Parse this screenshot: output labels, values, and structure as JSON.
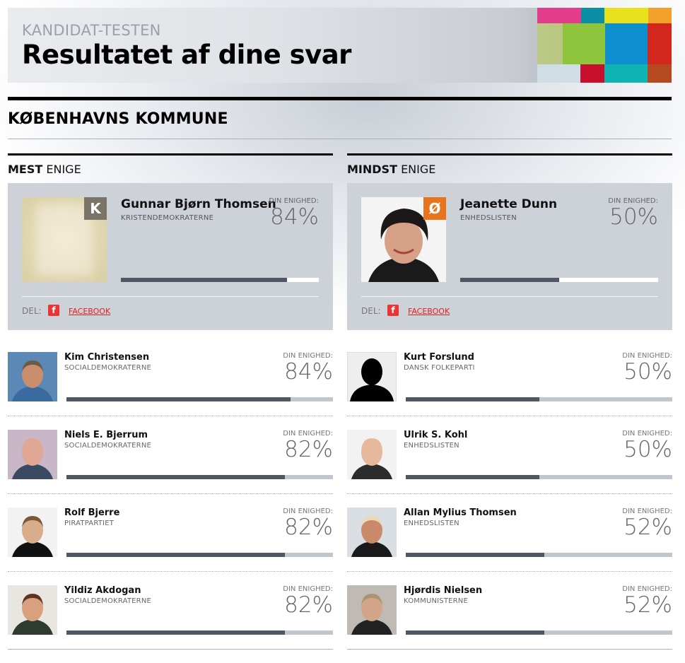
{
  "header": {
    "kicker": "KANDIDAT-TESTEN",
    "title": "Resultatet af dine svar"
  },
  "municipality": "KØBENHAVNS KOMMUNE",
  "agreement_label": "DIN ENIGHED:",
  "share": {
    "label": "DEL:",
    "facebook": "FACEBOOK"
  },
  "columns": {
    "most": {
      "heading_bold": "MEST",
      "heading_rest": " ENIGE",
      "featured": {
        "name": "Gunnar Bjørn Thomsen",
        "party": "KRISTENDEMOKRATERNE",
        "badge": "K",
        "badge_color": "#7a7466",
        "agreement": "84%",
        "agreement_value": 0.84
      },
      "candidates": [
        {
          "name": "Kim Christensen",
          "party": "SOCIALDEMOKRATERNE",
          "agreement": "84%",
          "agreement_value": 0.84
        },
        {
          "name": "Niels E. Bjerrum",
          "party": "SOCIALDEMOKRATERNE",
          "agreement": "82%",
          "agreement_value": 0.82
        },
        {
          "name": "Rolf Bjerre",
          "party": "PIRATPARTIET",
          "agreement": "82%",
          "agreement_value": 0.82
        },
        {
          "name": "Yildiz Akdogan",
          "party": "SOCIALDEMOKRATERNE",
          "agreement": "82%",
          "agreement_value": 0.82
        }
      ]
    },
    "least": {
      "heading_bold": "MINDST",
      "heading_rest": " ENIGE",
      "featured": {
        "name": "Jeanette Dunn",
        "party": "ENHEDSLISTEN",
        "badge": "Ø",
        "badge_color": "#e8741e",
        "agreement": "50%",
        "agreement_value": 0.5
      },
      "candidates": [
        {
          "name": "Kurt Forslund",
          "party": "DANSK FOLKEPARTI",
          "agreement": "50%",
          "agreement_value": 0.5
        },
        {
          "name": "Ulrik S. Kohl",
          "party": "ENHEDSLISTEN",
          "agreement": "50%",
          "agreement_value": 0.5
        },
        {
          "name": "Allan Mylius Thomsen",
          "party": "ENHEDSLISTEN",
          "agreement": "52%",
          "agreement_value": 0.52
        },
        {
          "name": "Hjørdis Nielsen",
          "party": "KOMMUNISTERNE",
          "agreement": "52%",
          "agreement_value": 0.52
        }
      ]
    }
  },
  "colors": {
    "bar_fill": "#4f5763",
    "panel_bg": "#cdd1d8",
    "facebook_red": "#e33333"
  }
}
